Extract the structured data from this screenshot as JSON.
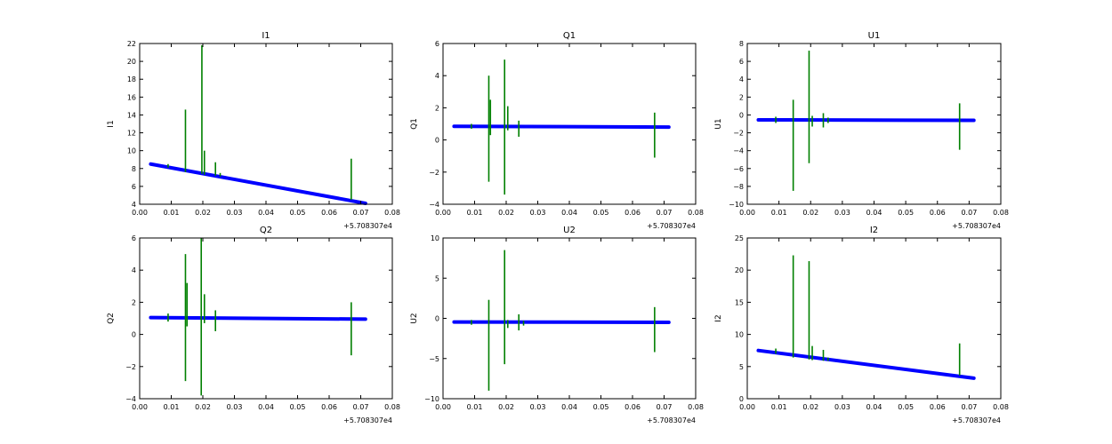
{
  "colors": {
    "fit": "#0000ff",
    "data": "#008000",
    "frame": "#000000",
    "background": "#ffffff"
  },
  "chart_data": [
    {
      "type": "line",
      "title": "I1",
      "ylabel": "I1",
      "xlim": [
        0.0,
        0.08
      ],
      "ylim": [
        4,
        22
      ],
      "xticks": [
        "0.00",
        "0.01",
        "0.02",
        "0.03",
        "0.04",
        "0.05",
        "0.06",
        "0.07",
        "0.08"
      ],
      "yticks": [
        "4",
        "6",
        "8",
        "10",
        "12",
        "14",
        "16",
        "18",
        "20",
        "22"
      ],
      "x_offset_label": "+5.708307e4",
      "series": [
        {
          "line": [
            [
              0.0035,
              8.5
            ],
            [
              0.0715,
              4.1
            ]
          ]
        },
        {
          "spikes": [
            [
              0.009,
              8.1,
              8.5
            ],
            [
              0.0145,
              7.6,
              14.6
            ],
            [
              0.0197,
              7.4,
              21.8
            ],
            [
              0.0205,
              7.3,
              10.0
            ],
            [
              0.024,
              7.2,
              8.7
            ],
            [
              0.0255,
              7.1,
              7.5
            ],
            [
              0.067,
              4.5,
              9.1
            ]
          ]
        }
      ]
    },
    {
      "type": "line",
      "title": "Q1",
      "ylabel": "Q1",
      "xlim": [
        0.0,
        0.08
      ],
      "ylim": [
        -4,
        6
      ],
      "xticks": [
        "0.00",
        "0.01",
        "0.02",
        "0.03",
        "0.04",
        "0.05",
        "0.06",
        "0.07",
        "0.08"
      ],
      "yticks": [
        "−4",
        "−2",
        "0",
        "2",
        "4",
        "6"
      ],
      "x_offset_label": "+5.708307e4",
      "series": [
        {
          "line": [
            [
              0.0035,
              0.85
            ],
            [
              0.0715,
              0.8
            ]
          ]
        },
        {
          "spikes": [
            [
              0.009,
              0.7,
              1.0
            ],
            [
              0.0145,
              -2.6,
              4.0
            ],
            [
              0.015,
              0.3,
              2.5
            ],
            [
              0.0195,
              -3.4,
              5.0
            ],
            [
              0.0205,
              0.6,
              2.1
            ],
            [
              0.024,
              0.2,
              1.2
            ],
            [
              0.067,
              -1.1,
              1.7
            ]
          ]
        }
      ]
    },
    {
      "type": "line",
      "title": "U1",
      "ylabel": "U1",
      "xlim": [
        0.0,
        0.08
      ],
      "ylim": [
        -10,
        8
      ],
      "xticks": [
        "0.00",
        "0.01",
        "0.02",
        "0.03",
        "0.04",
        "0.05",
        "0.06",
        "0.07",
        "0.08"
      ],
      "yticks": [
        "−10",
        "−8",
        "−6",
        "−4",
        "−2",
        "0",
        "2",
        "4",
        "6",
        "8"
      ],
      "x_offset_label": "+5.708307e4",
      "series": [
        {
          "line": [
            [
              0.0035,
              -0.55
            ],
            [
              0.0715,
              -0.6
            ]
          ]
        },
        {
          "spikes": [
            [
              0.009,
              -0.9,
              -0.2
            ],
            [
              0.0145,
              -8.5,
              1.7
            ],
            [
              0.0195,
              -5.4,
              7.2
            ],
            [
              0.0205,
              -1.3,
              -0.1
            ],
            [
              0.024,
              -1.4,
              0.2
            ],
            [
              0.0255,
              -0.9,
              -0.3
            ],
            [
              0.067,
              -3.9,
              1.3
            ]
          ]
        }
      ]
    },
    {
      "type": "line",
      "title": "Q2",
      "ylabel": "Q2",
      "xlim": [
        0.0,
        0.08
      ],
      "ylim": [
        -4,
        6
      ],
      "xticks": [
        "0.00",
        "0.01",
        "0.02",
        "0.03",
        "0.04",
        "0.05",
        "0.06",
        "0.07",
        "0.08"
      ],
      "yticks": [
        "−4",
        "−2",
        "0",
        "2",
        "4",
        "6"
      ],
      "x_offset_label": "+5.708307e4",
      "series": [
        {
          "line": [
            [
              0.0035,
              1.05
            ],
            [
              0.0715,
              0.95
            ]
          ]
        },
        {
          "spikes": [
            [
              0.009,
              0.8,
              1.3
            ],
            [
              0.0145,
              -2.9,
              5.0
            ],
            [
              0.015,
              0.5,
              3.2
            ],
            [
              0.0195,
              -3.8,
              6.0
            ],
            [
              0.0205,
              0.7,
              2.5
            ],
            [
              0.024,
              0.2,
              1.5
            ],
            [
              0.067,
              -1.3,
              2.0
            ]
          ]
        }
      ]
    },
    {
      "type": "line",
      "title": "U2",
      "ylabel": "U2",
      "xlim": [
        0.0,
        0.08
      ],
      "ylim": [
        -10,
        10
      ],
      "xticks": [
        "0.00",
        "0.01",
        "0.02",
        "0.03",
        "0.04",
        "0.05",
        "0.06",
        "0.07",
        "0.08"
      ],
      "yticks": [
        "−10",
        "−5",
        "0",
        "5",
        "10"
      ],
      "x_offset_label": "+5.708307e4",
      "series": [
        {
          "line": [
            [
              0.0035,
              -0.45
            ],
            [
              0.0715,
              -0.5
            ]
          ]
        },
        {
          "spikes": [
            [
              0.009,
              -0.8,
              -0.2
            ],
            [
              0.0145,
              -9.0,
              2.3
            ],
            [
              0.0195,
              -5.7,
              8.5
            ],
            [
              0.0205,
              -1.2,
              -0.2
            ],
            [
              0.024,
              -1.5,
              0.5
            ],
            [
              0.0255,
              -0.9,
              -0.3
            ],
            [
              0.067,
              -4.2,
              1.4
            ]
          ]
        }
      ]
    },
    {
      "type": "line",
      "title": "I2",
      "ylabel": "I2",
      "xlim": [
        0.0,
        0.08
      ],
      "ylim": [
        0,
        25
      ],
      "xticks": [
        "0.00",
        "0.01",
        "0.02",
        "0.03",
        "0.04",
        "0.05",
        "0.06",
        "0.07",
        "0.08"
      ],
      "yticks": [
        "0",
        "5",
        "10",
        "15",
        "20",
        "25"
      ],
      "x_offset_label": "+5.708307e4",
      "series": [
        {
          "line": [
            [
              0.0035,
              7.5
            ],
            [
              0.0715,
              3.2
            ]
          ]
        },
        {
          "spikes": [
            [
              0.009,
              7.0,
              7.8
            ],
            [
              0.0145,
              6.4,
              22.3
            ],
            [
              0.0195,
              6.1,
              21.4
            ],
            [
              0.0205,
              6.0,
              8.2
            ],
            [
              0.024,
              5.9,
              7.6
            ],
            [
              0.0255,
              5.9,
              6.4
            ],
            [
              0.067,
              3.6,
              8.6
            ]
          ]
        }
      ]
    }
  ]
}
